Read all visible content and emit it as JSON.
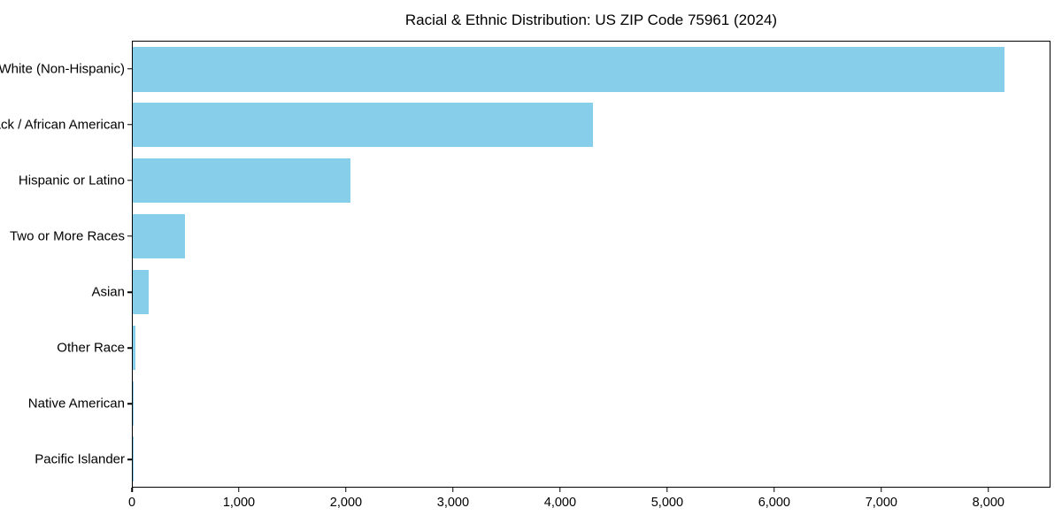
{
  "title": "Racial & Ethnic Distribution: US ZIP Code 75961 (2024)",
  "chart_data": {
    "type": "bar",
    "orientation": "horizontal",
    "title": "Racial & Ethnic Distribution: US ZIP Code 75961 (2024)",
    "categories": [
      "White (Non-Hispanic)",
      "Black / African American",
      "Hispanic or Latino",
      "Two or More Races",
      "Asian",
      "Other Race",
      "Native American",
      "Pacific Islander"
    ],
    "values": [
      8160,
      4310,
      2035,
      490,
      150,
      28,
      8,
      2
    ],
    "xlabel": "",
    "ylabel": "",
    "xlim": [
      0,
      8580
    ],
    "x_ticks": [
      0,
      1000,
      2000,
      3000,
      4000,
      5000,
      6000,
      7000,
      8000
    ],
    "x_tick_labels": [
      "0",
      "1,000",
      "2,000",
      "3,000",
      "4,000",
      "5,000",
      "6,000",
      "7,000",
      "8,000"
    ],
    "bar_color": "#87CEEB",
    "background_color": "#ffffff",
    "axis_color": "#000000",
    "grid": false,
    "legend": "none"
  }
}
